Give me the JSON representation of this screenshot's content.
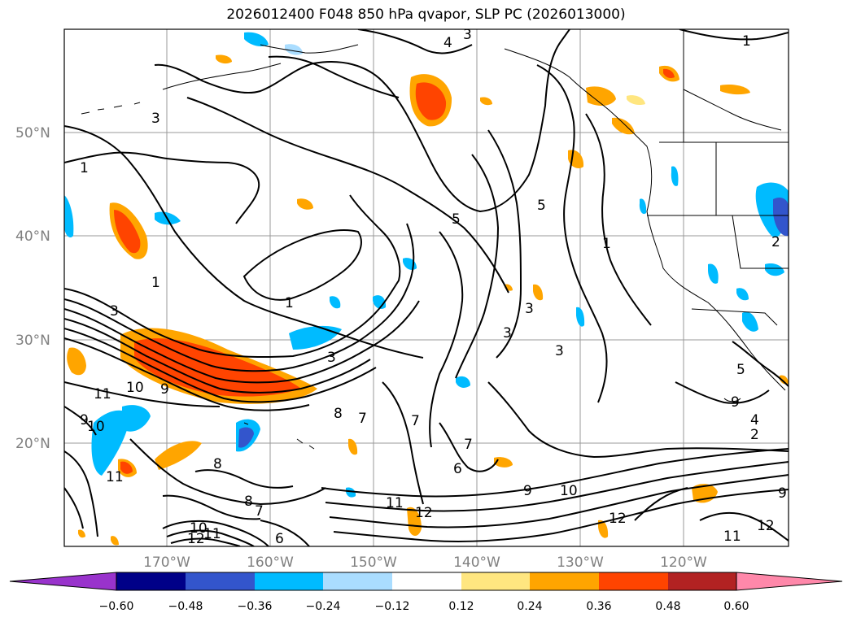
{
  "title": "2026012400 F048 850 hPa qvapor, SLP PC (2026013000)",
  "map": {
    "lat_ticks": [
      "50°N",
      "40°N",
      "30°N",
      "20°N"
    ],
    "lon_ticks": [
      "170°W",
      "160°W",
      "150°W",
      "140°W",
      "130°W",
      "120°W"
    ],
    "contour_labels": [
      "4",
      "3",
      "1",
      "3",
      "1",
      "5",
      "5",
      "1",
      "1",
      "3",
      "1",
      "3",
      "3",
      "3",
      "3",
      "10",
      "9",
      "11",
      "10",
      "9",
      "8",
      "7",
      "7",
      "7",
      "6",
      "11",
      "8",
      "8",
      "7",
      "6",
      "11",
      "12",
      "9",
      "10",
      "12",
      "10",
      "12",
      "11",
      "12",
      "11",
      "9",
      "4",
      "2",
      "2",
      "9",
      "5"
    ]
  },
  "colorbar": {
    "ticks": [
      "−0.60",
      "−0.48",
      "−0.36",
      "−0.24",
      "−0.12",
      "0.12",
      "0.24",
      "0.36",
      "0.48",
      "0.60"
    ],
    "colors": [
      "#9933cc",
      "#000088",
      "#3355cc",
      "#00bbff",
      "#aaddff",
      "#ffffff",
      "#ffe680",
      "#ffa500",
      "#ff4400",
      "#b22222",
      "#ff88aa"
    ]
  }
}
